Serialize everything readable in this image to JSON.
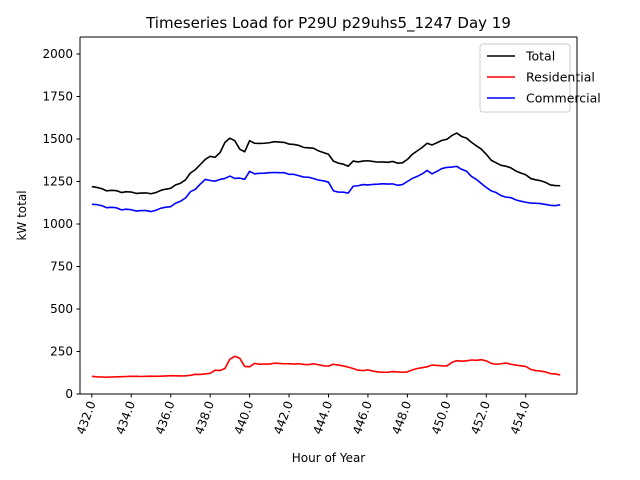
{
  "chart_data": {
    "type": "line",
    "title": "Timeseries Load for P29U p29uhs5_1247  Day 19",
    "xlabel": "Hour of Year",
    "ylabel": "kW total",
    "xlim": [
      431.4,
      456.6
    ],
    "ylim": [
      0,
      2100
    ],
    "xticks": [
      432,
      434,
      436,
      438,
      440,
      442,
      444,
      446,
      448,
      450,
      452,
      454
    ],
    "xtick_labels": [
      "432.0",
      "434.0",
      "436.0",
      "438.0",
      "440.0",
      "442.0",
      "444.0",
      "446.0",
      "448.0",
      "450.0",
      "452.0",
      "454.0"
    ],
    "yticks": [
      0,
      250,
      500,
      750,
      1000,
      1250,
      1500,
      1750,
      2000
    ],
    "ytick_labels": [
      "0",
      "250",
      "500",
      "750",
      "1000",
      "1250",
      "1500",
      "1750",
      "2000"
    ],
    "grid": false,
    "legend_position": "top-right",
    "x": [
      432.0,
      432.25,
      432.5,
      432.75,
      433.0,
      433.25,
      433.5,
      433.75,
      434.0,
      434.25,
      434.5,
      434.75,
      435.0,
      435.25,
      435.5,
      435.75,
      436.0,
      436.25,
      436.5,
      436.75,
      437.0,
      437.25,
      437.5,
      437.75,
      438.0,
      438.25,
      438.5,
      438.75,
      439.0,
      439.25,
      439.5,
      439.75,
      440.0,
      440.25,
      440.5,
      440.75,
      441.0,
      441.25,
      441.5,
      441.75,
      442.0,
      442.25,
      442.5,
      442.75,
      443.0,
      443.25,
      443.5,
      443.75,
      444.0,
      444.25,
      444.5,
      444.75,
      445.0,
      445.25,
      445.5,
      445.75,
      446.0,
      446.25,
      446.5,
      446.75,
      447.0,
      447.25,
      447.5,
      447.75,
      448.0,
      448.25,
      448.5,
      448.75,
      449.0,
      449.25,
      449.5,
      449.75,
      450.0,
      450.25,
      450.5,
      450.75,
      451.0,
      451.25,
      451.5,
      451.75,
      452.0,
      452.25,
      452.5,
      452.75,
      453.0,
      453.25,
      453.5,
      453.75,
      454.0,
      454.25,
      454.5,
      454.75,
      455.0,
      455.25,
      455.5,
      455.75
    ],
    "series": [
      {
        "name": "Total",
        "color": "#000000",
        "values": [
          1220,
          1215,
          1208,
          1195,
          1198,
          1196,
          1185,
          1190,
          1188,
          1180,
          1182,
          1183,
          1178,
          1185,
          1198,
          1205,
          1210,
          1230,
          1240,
          1260,
          1300,
          1320,
          1350,
          1380,
          1398,
          1392,
          1420,
          1480,
          1505,
          1490,
          1440,
          1425,
          1490,
          1475,
          1474,
          1475,
          1478,
          1484,
          1482,
          1480,
          1470,
          1468,
          1462,
          1450,
          1448,
          1445,
          1430,
          1420,
          1410,
          1370,
          1358,
          1352,
          1340,
          1370,
          1365,
          1370,
          1372,
          1368,
          1364,
          1365,
          1363,
          1368,
          1358,
          1360,
          1380,
          1410,
          1430,
          1450,
          1475,
          1465,
          1478,
          1492,
          1498,
          1520,
          1535,
          1515,
          1505,
          1480,
          1460,
          1440,
          1410,
          1375,
          1360,
          1345,
          1340,
          1330,
          1312,
          1300,
          1290,
          1268,
          1260,
          1255,
          1245,
          1230,
          1226,
          1225
        ]
      },
      {
        "name": "Residential",
        "color": "#ff0000",
        "values": [
          104,
          101,
          100,
          99,
          100,
          101,
          102,
          103,
          104,
          104,
          103,
          104,
          105,
          104,
          105,
          106,
          108,
          107,
          106,
          107,
          110,
          116,
          115,
          118,
          122,
          140,
          138,
          150,
          205,
          222,
          210,
          162,
          160,
          180,
          175,
          176,
          176,
          181,
          180,
          178,
          178,
          176,
          178,
          174,
          173,
          178,
          172,
          166,
          164,
          175,
          170,
          165,
          158,
          150,
          140,
          138,
          142,
          135,
          130,
          128,
          128,
          132,
          130,
          128,
          130,
          142,
          150,
          155,
          160,
          170,
          168,
          166,
          165,
          185,
          196,
          193,
          195,
          200,
          198,
          202,
          195,
          180,
          175,
          178,
          182,
          175,
          170,
          166,
          162,
          145,
          138,
          135,
          130,
          120,
          118,
          112
        ]
      },
      {
        "name": "Commercial",
        "color": "#0000ff",
        "values": [
          1116,
          1114,
          1108,
          1096,
          1098,
          1095,
          1083,
          1087,
          1084,
          1076,
          1079,
          1079,
          1073,
          1081,
          1093,
          1099,
          1102,
          1123,
          1134,
          1153,
          1190,
          1204,
          1235,
          1262,
          1256,
          1252,
          1262,
          1268,
          1282,
          1268,
          1270,
          1263,
          1310,
          1295,
          1298,
          1299,
          1302,
          1303,
          1302,
          1302,
          1292,
          1292,
          1284,
          1276,
          1275,
          1267,
          1258,
          1254,
          1246,
          1195,
          1188,
          1187,
          1182,
          1222,
          1225,
          1232,
          1230,
          1233,
          1234,
          1237,
          1235,
          1236,
          1228,
          1232,
          1250,
          1268,
          1280,
          1295,
          1315,
          1295,
          1310,
          1326,
          1333,
          1335,
          1339,
          1322,
          1310,
          1280,
          1262,
          1238,
          1215,
          1195,
          1185,
          1167,
          1158,
          1155,
          1142,
          1134,
          1128,
          1123,
          1122,
          1120,
          1115,
          1110,
          1108,
          1113
        ]
      }
    ]
  }
}
